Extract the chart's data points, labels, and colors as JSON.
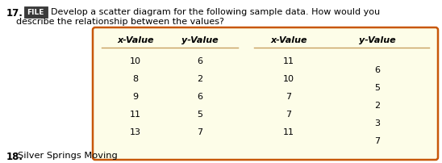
{
  "title_number": "17.",
  "file_label": "FILE",
  "file_bg": "#3a3a3a",
  "file_edge": "#222222",
  "title_line1": "Develop a scatter diagram for the following sample data. How would you",
  "title_line2": "describe the relationship between the values?",
  "table_headers": [
    "x-Value",
    "y-Value",
    "x-Value",
    "y-Value"
  ],
  "col1_x": [
    10,
    8,
    9,
    11,
    13
  ],
  "col1_y": [
    6,
    2,
    6,
    5,
    7
  ],
  "col2_x": [
    11,
    10,
    7,
    7,
    11
  ],
  "col2_y": [
    6,
    5,
    2,
    3,
    7
  ],
  "footer_number": "18.",
  "footer_text": "Silver Springs Moving",
  "bg_color": "#fdfde8",
  "border_color": "#c8580a",
  "sep_color": "#c8a060",
  "fig_width": 5.48,
  "fig_height": 2.03,
  "dpi": 100
}
